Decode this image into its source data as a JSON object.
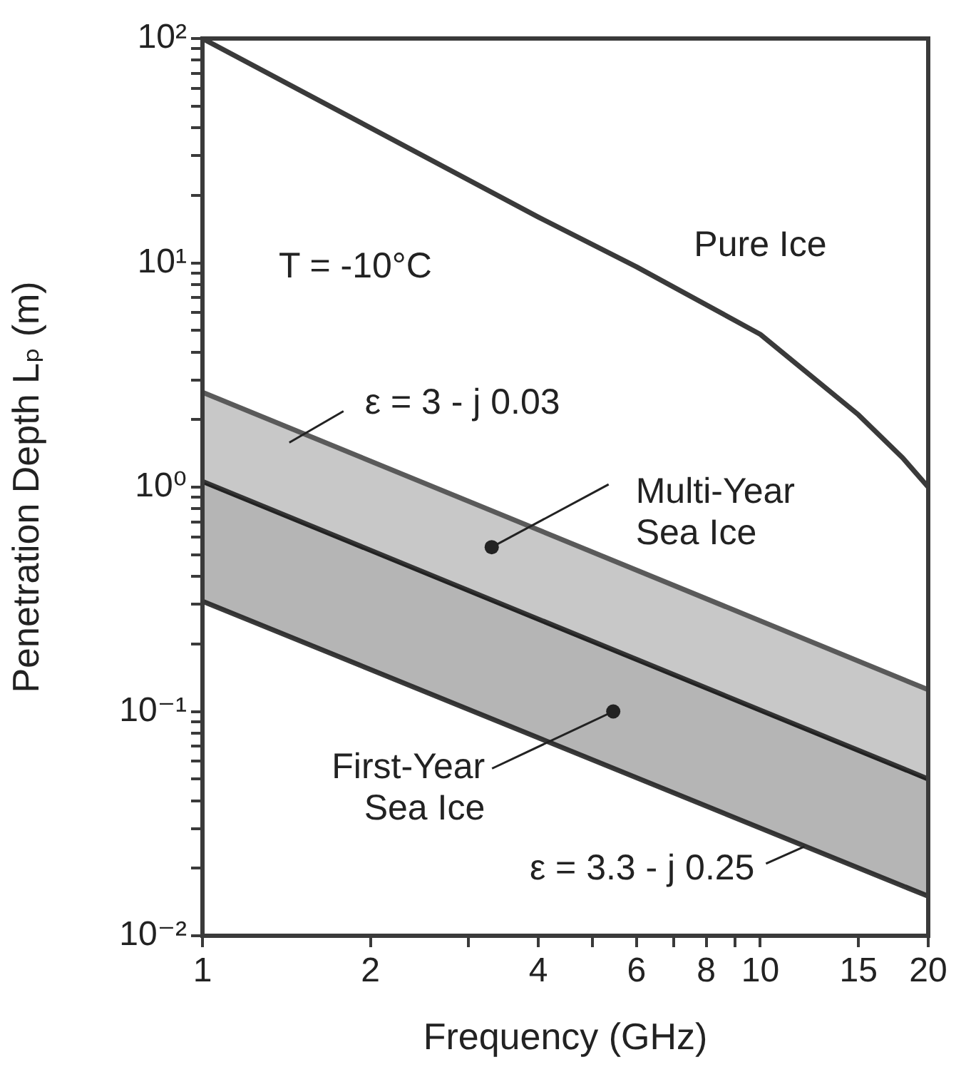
{
  "chart_data": {
    "type": "line",
    "xlabel": "Frequency (GHz)",
    "ylabel": "Penetration Depth Lₚ (m)",
    "log": "xy",
    "grid": false,
    "legend": false,
    "marker": "none",
    "line_style": "solid",
    "xlim": [
      1,
      20
    ],
    "ylim": [
      0.01,
      100
    ],
    "xticks": [
      1,
      2,
      {
        "value": 3,
        "label": null
      },
      4,
      {
        "value": 5,
        "label": null
      },
      6,
      {
        "value": 7,
        "label": null
      },
      8,
      {
        "value": 9,
        "label": null
      },
      10,
      15,
      20
    ],
    "yticks": [
      {
        "value": 0.01,
        "label": "10⁻²"
      },
      {
        "value": 0.02,
        "label": null
      },
      {
        "value": 0.03,
        "label": null
      },
      {
        "value": 0.04,
        "label": null
      },
      {
        "value": 0.05,
        "label": null
      },
      {
        "value": 0.06,
        "label": null
      },
      {
        "value": 0.07,
        "label": null
      },
      {
        "value": 0.08,
        "label": null
      },
      {
        "value": 0.09,
        "label": null
      },
      {
        "value": 0.1,
        "label": "10⁻¹"
      },
      {
        "value": 0.2,
        "label": null
      },
      {
        "value": 0.3,
        "label": null
      },
      {
        "value": 0.4,
        "label": null
      },
      {
        "value": 0.5,
        "label": null
      },
      {
        "value": 0.6,
        "label": null
      },
      {
        "value": 0.7,
        "label": null
      },
      {
        "value": 0.8,
        "label": null
      },
      {
        "value": 0.9,
        "label": null
      },
      {
        "value": 1,
        "label": "10⁰"
      },
      {
        "value": 2,
        "label": null
      },
      {
        "value": 3,
        "label": null
      },
      {
        "value": 4,
        "label": null
      },
      {
        "value": 5,
        "label": null
      },
      {
        "value": 6,
        "label": null
      },
      {
        "value": 7,
        "label": null
      },
      {
        "value": 8,
        "label": null
      },
      {
        "value": 9,
        "label": null
      },
      {
        "value": 10,
        "label": "10¹"
      },
      {
        "value": 20,
        "label": null
      },
      {
        "value": 30,
        "label": null
      },
      {
        "value": 40,
        "label": null
      },
      {
        "value": 50,
        "label": null
      },
      {
        "value": 60,
        "label": null
      },
      {
        "value": 70,
        "label": null
      },
      {
        "value": 80,
        "label": null
      },
      {
        "value": 90,
        "label": null
      },
      {
        "value": 100,
        "label": "10²"
      }
    ],
    "series": [
      {
        "color": "#3a3a3a",
        "x": [
          1,
          2,
          4,
          6,
          10,
          15,
          18,
          20
        ],
        "values": [
          100,
          40,
          16,
          9.6,
          4.8,
          2.1,
          1.35,
          1.0
        ]
      },
      {
        "type": "area",
        "color": "#5a5a5a",
        "x": [
          1,
          20
        ],
        "values": [
          2.65,
          0.125
        ]
      },
      {
        "type": "area",
        "color": "#222222",
        "x": [
          1,
          20
        ],
        "values": [
          1.06,
          0.05
        ]
      },
      {
        "color": "#3a3a3a",
        "x": [
          1,
          20
        ],
        "values": [
          0.31,
          0.015
        ]
      }
    ],
    "annotations": [
      "T = -10°C",
      {
        "text": "Pure Ice",
        "x": 10,
        "y": 4.8
      },
      {
        "text": "ε = 3 - j 0.03",
        "x": 1.5,
        "y": 1.75
      },
      {
        "text": "Multi-Year\nSea Ice",
        "x": 3.3,
        "y": 0.54
      },
      {
        "text": "First-Year\nSea Ice",
        "x": 5.45,
        "y": 0.1
      },
      {
        "text": "ε = 3.3 - j 0.25",
        "x": 12,
        "y": 0.025
      }
    ]
  }
}
